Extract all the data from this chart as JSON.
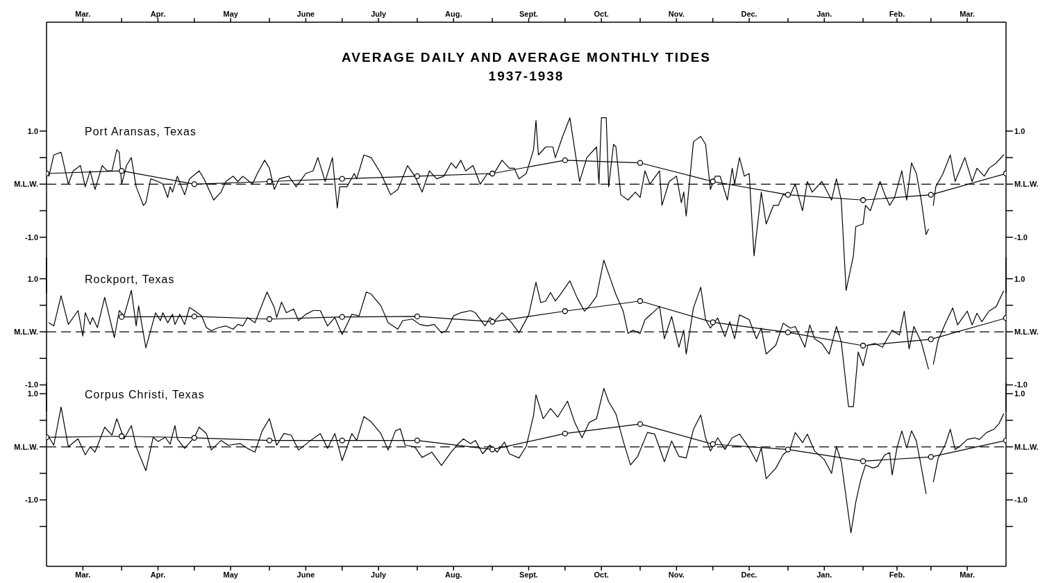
{
  "chart_data": [
    {
      "type": "line",
      "title": "AVERAGE DAILY AND AVERAGE MONTHLY TIDES",
      "subtitle": "1937-1938",
      "annotations": [
        "Port Aransas, Texas"
      ],
      "xlim": [
        "1937-03-01",
        "1938-04-01"
      ],
      "x2lim": [
        "1937-03-01",
        "1938-04-01"
      ],
      "x2ticks": [
        {
          "value": "1937-03-16",
          "label": "Mar."
        },
        {
          "value": "1937-04-01",
          "label": null
        },
        {
          "value": "1937-04-16",
          "label": "Apr."
        },
        {
          "value": "1937-05-01",
          "label": null
        },
        {
          "value": "1937-05-16",
          "label": "May"
        },
        {
          "value": "1937-06-01",
          "label": null
        },
        {
          "value": "1937-06-16",
          "label": "June"
        },
        {
          "value": "1937-07-01",
          "label": null
        },
        {
          "value": "1937-07-16",
          "label": "July"
        },
        {
          "value": "1937-08-01",
          "label": null
        },
        {
          "value": "1937-08-16",
          "label": "Aug."
        },
        {
          "value": "1937-09-01",
          "label": null
        },
        {
          "value": "1937-09-16",
          "label": "Sept."
        },
        {
          "value": "1937-10-01",
          "label": null
        },
        {
          "value": "1937-10-16",
          "label": "Oct."
        },
        {
          "value": "1937-11-01",
          "label": null
        },
        {
          "value": "1937-11-16",
          "label": "Nov."
        },
        {
          "value": "1937-12-01",
          "label": null
        },
        {
          "value": "1937-12-16",
          "label": "Dec."
        },
        {
          "value": "1938-01-01",
          "label": null
        },
        {
          "value": "1938-01-16",
          "label": "Jan."
        },
        {
          "value": "1938-02-01",
          "label": null
        },
        {
          "value": "1938-02-15",
          "label": "Feb."
        },
        {
          "value": "1938-03-01",
          "label": null
        },
        {
          "value": "1938-03-16",
          "label": "Mar."
        }
      ],
      "ylim": [
        -2.05,
        3.05
      ],
      "yticks": [
        {
          "value": 1,
          "label": "1.0"
        },
        {
          "value": 0.5,
          "label": null
        },
        {
          "value": 0,
          "label": "M.L.W."
        },
        {
          "value": -0.5,
          "label": null
        },
        {
          "value": -1,
          "label": "-1.0"
        }
      ],
      "y2lim": [
        -2.05,
        3.05
      ],
      "y2ticks": [
        {
          "value": 1,
          "label": "1.0"
        },
        {
          "value": 0.5,
          "label": null
        },
        {
          "value": 0,
          "label": "M.L.W."
        },
        {
          "value": -0.5,
          "label": null
        },
        {
          "value": -1,
          "label": "-1.0"
        }
      ],
      "tick_labels": "y",
      "grid": false,
      "legend": false,
      "ref_lines": [
        {
          "axis": "y",
          "value": 0,
          "color": "#000000",
          "line_style": "dashed"
        }
      ],
      "series": [
        {
          "type": "line",
          "color": "#000000",
          "marker": "none",
          "x": [
            "1937-03-02",
            "1937-03-04",
            "1937-03-07",
            "1937-03-10",
            "1937-03-12",
            "1937-03-15",
            "1937-03-17",
            "1937-03-19",
            "1937-03-21",
            "1937-03-24",
            "1937-03-26",
            "1937-03-28",
            "1937-03-30",
            "1937-03-31",
            "1937-04-01",
            "1937-04-03",
            "1937-04-05",
            "1937-04-07",
            "1937-04-10",
            "1937-04-11",
            "1937-04-13",
            "1937-04-16",
            "1937-04-18",
            "1937-04-20",
            "1937-04-21",
            "1937-04-22",
            "1937-04-24",
            "1937-04-27",
            "1937-04-29",
            "1937-05-03",
            "1937-05-05",
            "1937-05-09",
            "1937-05-12",
            "1937-05-14",
            "1937-05-17",
            "1937-05-19",
            "1937-05-21",
            "1937-05-25",
            "1937-05-27",
            "1937-05-30",
            "1937-06-01",
            "1937-06-03",
            "1937-06-05",
            "1937-06-09",
            "1937-06-12",
            "1937-06-16",
            "1937-06-19",
            "1937-06-21",
            "1937-06-24",
            "1937-06-27",
            "1937-06-29",
            "1937-06-30",
            "1937-07-03",
            "1937-07-06",
            "1937-07-07",
            "1937-07-10",
            "1937-07-13",
            "1937-07-17",
            "1937-07-21",
            "1937-07-24",
            "1937-07-28",
            "1937-07-31",
            "1937-08-03",
            "1937-08-06",
            "1937-08-09",
            "1937-08-12",
            "1937-08-15",
            "1937-08-17",
            "1937-08-19",
            "1937-08-21",
            "1937-08-24",
            "1937-08-27",
            "1937-08-30",
            "1937-09-01",
            "1937-09-03",
            "1937-09-05",
            "1937-09-08",
            "1937-09-10",
            "1937-09-12",
            "1937-09-15",
            "1937-09-18",
            "1937-09-19",
            "1937-09-20",
            "1937-09-23",
            "1937-09-26",
            "1937-09-27",
            "1937-09-30",
            "1937-10-03",
            "1937-10-05",
            "1937-10-07",
            "1937-10-10",
            "1937-10-14",
            "1937-10-15",
            "1937-10-16",
            "1937-10-18",
            "1937-10-19",
            "1937-10-21",
            "1937-10-22",
            "1937-10-24",
            "1937-10-27",
            "1937-10-30",
            "1937-11-01",
            "1937-11-03",
            "1937-11-05",
            "1937-11-09",
            "1937-11-10",
            "1937-11-13",
            "1937-11-16",
            "1937-11-18",
            "1937-11-19",
            "1937-11-20",
            "1937-11-23",
            "1937-11-26",
            "1937-11-28",
            "1937-11-30",
            "1937-12-02",
            "1937-12-04",
            "1937-12-07",
            "1937-12-09",
            "1937-12-10",
            "1937-12-12",
            "1937-12-14",
            "1937-12-16",
            "1937-12-18",
            "1937-12-21",
            "1937-12-23",
            "1937-12-26",
            "1937-12-28",
            "1937-12-30",
            "1938-01-02",
            "1938-01-04",
            "1938-01-07",
            "1938-01-09",
            "1938-01-11",
            "1938-01-15",
            "1938-01-19",
            "1938-01-21",
            "1938-01-23",
            "1938-01-25",
            "1938-01-28",
            "1938-01-29",
            "1938-02-01",
            "1938-02-02",
            "1938-02-04",
            "1938-02-08",
            "1938-02-10",
            "1938-02-12",
            "1938-02-14",
            "1938-02-17",
            "1938-02-19",
            "1938-02-21",
            "1938-02-23",
            "1938-02-25",
            "1938-02-27",
            "1938-02-28",
            "1938-03-01",
            "1938-03-02",
            "1938-03-03",
            "1938-03-06",
            "1938-03-09",
            "1938-03-11",
            "1938-03-15",
            "1938-03-18",
            "1938-03-20",
            "1938-03-23",
            "1938-03-25",
            "1938-03-28",
            "1938-03-31"
          ],
          "values": [
            0.15,
            0.55,
            0.6,
            0.0,
            0.25,
            0.35,
            -0.05,
            0.25,
            -0.1,
            0.35,
            0.25,
            0.25,
            0.65,
            0.6,
            0.0,
            0.35,
            0.5,
            -0.05,
            -0.4,
            -0.35,
            0.1,
            0.05,
            0.0,
            -0.25,
            -0.05,
            -0.15,
            0.15,
            -0.2,
            0.1,
            0.25,
            0.1,
            -0.3,
            -0.15,
            0.05,
            0.15,
            0.05,
            0.15,
            0.0,
            0.2,
            0.45,
            0.3,
            -0.1,
            0.1,
            0.15,
            -0.05,
            0.2,
            0.25,
            0.5,
            0.05,
            0.5,
            -0.45,
            -0.05,
            -0.05,
            0.2,
            0.1,
            0.55,
            0.5,
            0.2,
            -0.2,
            -0.1,
            0.35,
            0.15,
            -0.15,
            0.25,
            0.1,
            0.15,
            0.4,
            0.3,
            0.45,
            0.25,
            0.35,
            0.0,
            0.2,
            0.15,
            0.3,
            0.45,
            0.3,
            0.3,
            0.1,
            0.2,
            0.65,
            1.2,
            0.55,
            0.7,
            0.7,
            0.5,
            0.9,
            1.25,
            0.65,
            0.05,
            0.5,
            0.7,
            0.0,
            1.25,
            1.25,
            -0.05,
            0.75,
            0.7,
            -0.2,
            -0.3,
            -0.15,
            -0.25,
            0.25,
            0.0,
            0.25,
            -0.4,
            0.05,
            0.15,
            -0.35,
            -0.15,
            -0.6,
            0.8,
            0.9,
            0.75,
            -0.1,
            0.15,
            0.15,
            -0.3,
            0.3,
            0.0,
            0.5,
            0.15,
            0.2,
            -1.35,
            -0.15,
            -0.75,
            -0.4,
            -0.4,
            -0.2,
            -0.2,
            0.0,
            -0.5,
            0.05,
            -0.15,
            0.05,
            -0.3,
            0.1,
            -0.3,
            -2.0,
            -1.35,
            -0.8,
            -0.75,
            -0.4,
            -0.5,
            0.05,
            -0.2,
            -0.4,
            -0.25,
            0.25,
            -0.3,
            0.4,
            0.2,
            -0.3,
            -0.95,
            -0.85,
            null,
            -0.4,
            -0.05,
            0.2,
            0.55,
            0.05,
            0.5,
            0.05,
            0.3,
            0.15,
            0.3,
            0.4,
            0.55
          ]
        },
        {
          "type": "line",
          "color": "#000000",
          "marker": "circle",
          "x": [
            "1937-03-01",
            "1937-04-01",
            "1937-05-01",
            "1937-06-01",
            "1937-07-01",
            "1937-08-01",
            "1937-09-01",
            "1937-10-01",
            "1937-11-01",
            "1937-12-01",
            "1938-01-01",
            "1938-02-01",
            "1938-03-01",
            "1938-04-01"
          ],
          "values": [
            0.2,
            0.25,
            0.0,
            0.05,
            0.1,
            0.15,
            0.2,
            0.45,
            0.4,
            0.05,
            -0.2,
            -0.3,
            -0.2,
            0.2
          ]
        }
      ]
    },
    {
      "type": "line",
      "annotations": [
        "Rockport, Texas"
      ],
      "xlim": [
        "1937-03-01",
        "1938-04-01"
      ],
      "ylim": [
        -1.5,
        1.4
      ],
      "yticks": [
        {
          "value": 1,
          "label": "1.0"
        },
        {
          "value": 0.5,
          "label": null
        },
        {
          "value": 0,
          "label": "M.L.W."
        },
        {
          "value": -0.5,
          "label": null
        },
        {
          "value": -1,
          "label": "-1.0"
        }
      ],
      "y2lim": [
        -1.5,
        1.4
      ],
      "y2ticks": [
        {
          "value": 1,
          "label": "1.0"
        },
        {
          "value": 0.5,
          "label": null
        },
        {
          "value": 0,
          "label": "M.L.W."
        },
        {
          "value": -0.5,
          "label": null
        },
        {
          "value": -1,
          "label": "-1.0"
        }
      ],
      "tick_labels": "y",
      "grid": false,
      "legend": false,
      "ref_lines": [
        {
          "axis": "y",
          "value": 0,
          "color": "#000000",
          "line_style": "dashed"
        }
      ],
      "series": [
        {
          "type": "line",
          "color": "#000000",
          "marker": "none",
          "x": [
            "1937-03-02",
            "1937-03-04",
            "1937-03-07",
            "1937-03-10",
            "1937-03-14",
            "1937-03-16",
            "1937-03-17",
            "1937-03-19",
            "1937-03-20",
            "1937-03-22",
            "1937-03-25",
            "1937-03-29",
            "1937-03-31",
            "1937-04-02",
            "1937-04-05",
            "1937-04-07",
            "1937-04-08",
            "1937-04-11",
            "1937-04-15",
            "1937-04-17",
            "1937-04-18",
            "1937-04-20",
            "1937-04-22",
            "1937-04-23",
            "1937-04-25",
            "1937-04-27",
            "1937-04-29",
            "1937-05-01",
            "1937-05-04",
            "1937-05-06",
            "1937-05-08",
            "1937-05-11",
            "1937-05-14",
            "1937-05-17",
            "1937-05-19",
            "1937-05-21",
            "1937-05-23",
            "1937-05-26",
            "1937-05-28",
            "1937-05-31",
            "1937-06-03",
            "1937-06-04",
            "1937-06-06",
            "1937-06-08",
            "1937-06-11",
            "1937-06-13",
            "1937-06-16",
            "1937-06-19",
            "1937-06-22",
            "1937-06-25",
            "1937-06-28",
            "1937-07-01",
            "1937-07-05",
            "1937-07-08",
            "1937-07-11",
            "1937-07-13",
            "1937-07-17",
            "1937-07-20",
            "1937-07-24",
            "1937-07-26",
            "1937-07-30",
            "1937-08-02",
            "1937-08-05",
            "1937-08-08",
            "1937-08-11",
            "1937-08-13",
            "1937-08-16",
            "1937-08-19",
            "1937-08-23",
            "1937-08-25",
            "1937-08-29",
            "1937-08-31",
            "1937-09-02",
            "1937-09-05",
            "1937-09-09",
            "1937-09-12",
            "1937-09-16",
            "1937-09-19",
            "1937-09-21",
            "1937-09-23",
            "1937-09-25",
            "1937-09-27",
            "1937-09-29",
            "1937-10-03",
            "1937-10-06",
            "1937-10-09",
            "1937-10-11",
            "1937-10-14",
            "1937-10-17",
            "1937-10-20",
            "1937-10-22",
            "1937-10-25",
            "1937-10-27",
            "1937-10-29",
            "1937-11-01",
            "1937-11-03",
            "1937-11-06",
            "1937-11-09",
            "1937-11-11",
            "1937-11-14",
            "1937-11-17",
            "1937-11-19",
            "1937-11-20",
            "1937-11-23",
            "1937-11-26",
            "1937-11-28",
            "1937-11-30",
            "1937-12-03",
            "1937-12-06",
            "1937-12-08",
            "1937-12-10",
            "1937-12-12",
            "1937-12-16",
            "1937-12-19",
            "1937-12-21",
            "1937-12-23",
            "1937-12-27",
            "1937-12-30",
            "1938-01-02",
            "1938-01-04",
            "1938-01-08",
            "1938-01-10",
            "1938-01-12",
            "1938-01-15",
            "1938-01-18",
            "1938-01-21",
            "1938-01-23",
            "1938-01-26",
            "1938-01-28",
            "1938-01-30",
            "1938-02-01",
            "1938-02-03",
            "1938-02-06",
            "1938-02-09",
            "1938-02-13",
            "1938-02-16",
            "1938-02-18",
            "1938-02-20",
            "1938-02-22",
            "1938-02-25",
            "1938-02-28",
            "1938-03-01",
            "1938-03-02",
            "1938-03-04",
            "1938-03-07",
            "1938-03-10",
            "1938-03-12",
            "1938-03-16",
            "1938-03-18",
            "1938-03-20",
            "1938-03-22",
            "1938-03-25",
            "1938-03-28",
            "1938-03-31"
          ],
          "values": [
            0.17,
            0.11,
            0.68,
            0.14,
            0.4,
            -0.08,
            0.36,
            0.14,
            0.27,
            0.08,
            0.65,
            -0.11,
            0.4,
            0.3,
            0.78,
            0.11,
            0.49,
            -0.3,
            0.36,
            0.21,
            0.36,
            0.17,
            0.33,
            0.14,
            0.33,
            0.14,
            0.46,
            0.4,
            0.3,
            0.08,
            0.02,
            0.08,
            0.11,
            0.05,
            0.14,
            0.11,
            0.27,
            0.17,
            0.4,
            0.75,
            0.46,
            0.27,
            0.56,
            0.36,
            0.43,
            0.21,
            0.33,
            0.4,
            0.4,
            0.11,
            0.27,
            -0.05,
            0.33,
            0.3,
            0.75,
            0.71,
            0.49,
            0.17,
            0.05,
            0.21,
            0.24,
            0.14,
            0.11,
            0.14,
            -0.02,
            0.02,
            0.3,
            0.36,
            0.4,
            0.36,
            0.11,
            0.27,
            0.21,
            0.36,
            0.17,
            -0.02,
            0.32,
            0.93,
            0.55,
            0.58,
            0.74,
            0.58,
            0.7,
            0.96,
            0.64,
            0.39,
            0.48,
            0.67,
            1.35,
            0.96,
            0.7,
            0.39,
            -0.03,
            0.03,
            -0.03,
            0.23,
            0.35,
            0.48,
            -0.13,
            0.29,
            -0.29,
            0.03,
            -0.42,
            0.45,
            0.84,
            0.23,
            0.07,
            0.26,
            -0.09,
            0.19,
            -0.13,
            0.32,
            0.23,
            -0.13,
            0.07,
            -0.42,
            -0.25,
            0.16,
            0.07,
            0.1,
            -0.29,
            0.13,
            -0.13,
            -0.22,
            -0.42,
            0.1,
            -0.19,
            -1.41,
            -1.41,
            -0.38,
            -0.64,
            -0.25,
            -0.22,
            -0.29,
            0.03,
            -0.06,
            0.39,
            -0.32,
            0.1,
            -0.19,
            -0.7,
            null,
            -0.61,
            -0.16,
            0.16,
            0.45,
            0.13,
            0.39,
            0.13,
            0.35,
            0.19,
            0.39,
            0.48,
            0.77
          ]
        },
        {
          "type": "line",
          "color": "#000000",
          "marker": "circle",
          "x": [
            "1937-04-01",
            "1937-05-01",
            "1937-06-01",
            "1937-07-01",
            "1937-08-01",
            "1937-09-01",
            "1937-10-01",
            "1937-11-01",
            "1937-12-01",
            "1938-01-01",
            "1938-02-01",
            "1938-03-01",
            "1938-04-01"
          ],
          "values": [
            0.28,
            0.29,
            0.24,
            0.28,
            0.29,
            0.19,
            0.39,
            0.58,
            0.18,
            -0.01,
            -0.26,
            -0.14,
            0.26
          ]
        }
      ]
    },
    {
      "type": "line",
      "annotations": [
        "Corpus Christi, Texas"
      ],
      "xlim": [
        "1937-03-01",
        "1938-04-01"
      ],
      "xticks": [
        {
          "value": "1937-03-16",
          "label": "Mar."
        },
        {
          "value": "1937-04-01",
          "label": null
        },
        {
          "value": "1937-04-16",
          "label": "Apr."
        },
        {
          "value": "1937-05-01",
          "label": null
        },
        {
          "value": "1937-05-16",
          "label": "May"
        },
        {
          "value": "1937-06-01",
          "label": null
        },
        {
          "value": "1937-06-16",
          "label": "June"
        },
        {
          "value": "1937-07-01",
          "label": null
        },
        {
          "value": "1937-07-16",
          "label": "July"
        },
        {
          "value": "1937-08-01",
          "label": null
        },
        {
          "value": "1937-08-16",
          "label": "Aug."
        },
        {
          "value": "1937-09-01",
          "label": null
        },
        {
          "value": "1937-09-16",
          "label": "Sept."
        },
        {
          "value": "1937-10-01",
          "label": null
        },
        {
          "value": "1937-10-16",
          "label": "Oct."
        },
        {
          "value": "1937-11-01",
          "label": null
        },
        {
          "value": "1937-11-16",
          "label": "Nov."
        },
        {
          "value": "1937-12-01",
          "label": null
        },
        {
          "value": "1937-12-16",
          "label": "Dec."
        },
        {
          "value": "1938-01-01",
          "label": null
        },
        {
          "value": "1938-01-16",
          "label": "Jan."
        },
        {
          "value": "1938-02-01",
          "label": null
        },
        {
          "value": "1938-02-15",
          "label": "Feb."
        },
        {
          "value": "1938-03-01",
          "label": null
        },
        {
          "value": "1938-03-16",
          "label": "Mar."
        }
      ],
      "ylim": [
        -2.25,
        1.2
      ],
      "yticks": [
        {
          "value": 1,
          "label": "1.0"
        },
        {
          "value": 0.5,
          "label": null
        },
        {
          "value": 0,
          "label": "M.L.W."
        },
        {
          "value": -0.5,
          "label": null
        },
        {
          "value": -1,
          "label": "-1.0"
        },
        {
          "value": -1.5,
          "label": null
        }
      ],
      "y2lim": [
        -2.25,
        1.2
      ],
      "y2ticks": [
        {
          "value": 1,
          "label": "1.0"
        },
        {
          "value": 0.5,
          "label": null
        },
        {
          "value": 0,
          "label": "M.L.W."
        },
        {
          "value": -0.5,
          "label": null
        },
        {
          "value": -1,
          "label": "-1.0"
        },
        {
          "value": -1.5,
          "label": null
        }
      ],
      "grid": false,
      "legend": false,
      "ref_lines": [
        {
          "axis": "y",
          "value": 0,
          "color": "#000000",
          "line_style": "dashed"
        }
      ],
      "series": [
        {
          "type": "line",
          "color": "#000000",
          "marker": "none",
          "x": [
            "1937-03-02",
            "1937-03-04",
            "1937-03-07",
            "1937-03-10",
            "1937-03-14",
            "1937-03-17",
            "1937-03-19",
            "1937-03-21",
            "1937-03-25",
            "1937-03-28",
            "1937-03-30",
            "1937-04-02",
            "1937-04-05",
            "1937-04-07",
            "1937-04-11",
            "1937-04-14",
            "1937-04-16",
            "1937-04-19",
            "1937-04-21",
            "1937-04-23",
            "1937-04-24",
            "1937-04-27",
            "1937-05-01",
            "1937-05-03",
            "1937-05-06",
            "1937-05-08",
            "1937-05-12",
            "1937-05-15",
            "1937-05-20",
            "1937-05-23",
            "1937-05-26",
            "1937-05-29",
            "1937-06-01",
            "1937-06-04",
            "1937-06-07",
            "1937-06-10",
            "1937-06-13",
            "1937-06-18",
            "1937-06-22",
            "1937-06-25",
            "1937-06-28",
            "1937-07-01",
            "1937-07-05",
            "1937-07-07",
            "1937-07-10",
            "1937-07-13",
            "1937-07-17",
            "1937-07-20",
            "1937-07-23",
            "1937-07-25",
            "1937-07-27",
            "1937-07-31",
            "1937-08-03",
            "1937-08-07",
            "1937-08-11",
            "1937-08-15",
            "1937-08-18",
            "1937-08-20",
            "1937-08-23",
            "1937-08-25",
            "1937-08-28",
            "1937-08-31",
            "1937-09-03",
            "1937-09-06",
            "1937-09-08",
            "1937-09-12",
            "1937-09-15",
            "1937-09-18",
            "1937-09-19",
            "1937-09-22",
            "1937-09-25",
            "1937-09-28",
            "1937-10-02",
            "1937-10-05",
            "1937-10-08",
            "1937-10-11",
            "1937-10-14",
            "1937-10-17",
            "1937-10-19",
            "1937-10-22",
            "1937-10-25",
            "1937-10-28",
            "1937-10-31",
            "1937-11-04",
            "1937-11-07",
            "1937-11-11",
            "1937-11-14",
            "1937-11-17",
            "1937-11-20",
            "1937-11-23",
            "1937-11-26",
            "1937-11-28",
            "1937-11-30",
            "1937-12-03",
            "1937-12-06",
            "1937-12-09",
            "1937-12-12",
            "1937-12-16",
            "1937-12-19",
            "1937-12-21",
            "1937-12-23",
            "1937-12-27",
            "1937-12-30",
            "1938-01-02",
            "1938-01-04",
            "1938-01-07",
            "1938-01-09",
            "1938-01-12",
            "1938-01-16",
            "1938-01-19",
            "1938-01-21",
            "1938-01-23",
            "1938-01-27",
            "1938-01-29",
            "1938-01-31",
            "1938-02-02",
            "1938-02-05",
            "1938-02-07",
            "1938-02-10",
            "1938-02-12",
            "1938-02-13",
            "1938-02-15",
            "1938-02-17",
            "1938-02-19",
            "1938-02-21",
            "1938-02-23",
            "1938-02-25",
            "1938-02-27",
            "1938-03-01",
            "1938-03-02",
            "1938-03-04",
            "1938-03-07",
            "1938-03-09",
            "1938-03-11",
            "1938-03-13",
            "1938-03-16",
            "1938-03-19",
            "1938-03-21",
            "1938-03-24",
            "1938-03-27",
            "1938-03-29",
            "1938-03-31"
          ],
          "values": [
            0.18,
            0.03,
            0.75,
            0.0,
            0.15,
            -0.15,
            0.0,
            -0.1,
            0.37,
            0.22,
            0.53,
            0.15,
            0.4,
            0.0,
            -0.45,
            0.18,
            0.1,
            0.18,
            0.05,
            0.4,
            0.15,
            -0.03,
            0.18,
            0.37,
            0.25,
            -0.06,
            0.12,
            0.03,
            0.06,
            -0.03,
            -0.1,
            0.3,
            0.53,
            0.03,
            0.25,
            0.22,
            -0.06,
            0.12,
            0.25,
            -0.03,
            0.25,
            -0.26,
            0.25,
            0.12,
            0.57,
            0.47,
            0.25,
            -0.06,
            0.3,
            0.34,
            0.03,
            0.0,
            -0.2,
            -0.1,
            -0.35,
            -0.1,
            0.06,
            0.15,
            0.06,
            0.12,
            -0.13,
            0.03,
            -0.1,
            0.09,
            -0.13,
            -0.21,
            0.01,
            0.59,
            0.98,
            0.53,
            0.72,
            0.56,
            0.86,
            0.46,
            0.17,
            0.46,
            0.53,
            1.1,
            0.85,
            0.62,
            0.11,
            -0.34,
            -0.18,
            0.27,
            0.24,
            -0.28,
            0.11,
            -0.18,
            -0.21,
            0.33,
            0.6,
            0.17,
            -0.08,
            0.17,
            -0.05,
            0.17,
            0.24,
            -0.02,
            -0.28,
            -0.02,
            -0.6,
            -0.4,
            -0.15,
            -0.02,
            0.27,
            0.08,
            0.24,
            -0.08,
            -0.24,
            -0.5,
            0.01,
            -0.28,
            -1.62,
            -1.04,
            -0.63,
            -0.34,
            -0.4,
            -0.37,
            -0.15,
            -0.11,
            -0.53,
            -0.02,
            0.3,
            -0.02,
            0.3,
            0.11,
            -0.37,
            -0.88,
            null,
            -0.66,
            -0.21,
            0.05,
            0.33,
            -0.05,
            0.01,
            0.14,
            0.17,
            0.14,
            0.27,
            0.33,
            0.43,
            0.62
          ]
        },
        {
          "type": "line",
          "color": "#000000",
          "marker": "circle",
          "x": [
            "1937-03-01",
            "1937-04-01",
            "1937-05-01",
            "1937-06-01",
            "1937-07-01",
            "1937-08-01",
            "1937-09-01",
            "1937-10-01",
            "1937-11-01",
            "1937-12-01",
            "1938-01-01",
            "1938-02-01",
            "1938-03-01",
            "1938-04-01"
          ],
          "values": [
            0.18,
            0.2,
            0.17,
            0.12,
            0.12,
            0.12,
            -0.05,
            0.25,
            0.43,
            0.05,
            -0.05,
            -0.27,
            -0.19,
            0.12
          ]
        }
      ]
    }
  ]
}
